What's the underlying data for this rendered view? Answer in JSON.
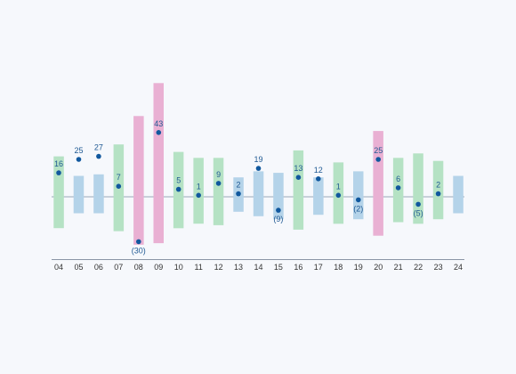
{
  "chart_data": {
    "type": "bar",
    "title": "",
    "xlabel": "",
    "ylabel": "",
    "categories": [
      "04",
      "05",
      "06",
      "07",
      "08",
      "09",
      "10",
      "11",
      "12",
      "13",
      "14",
      "15",
      "16",
      "17",
      "18",
      "19",
      "20",
      "21",
      "22",
      "23",
      "24"
    ],
    "values": [
      16,
      25,
      27,
      7,
      -30,
      43,
      5,
      1,
      9,
      2,
      19,
      -9,
      13,
      12,
      1,
      -2,
      25,
      6,
      -5,
      2,
      null
    ],
    "value_labels": [
      "16",
      "25",
      "27",
      "7",
      "(30)",
      "43",
      "5",
      "1",
      "9",
      "2",
      "19",
      "(9)",
      "13",
      "12",
      "1",
      "(2)",
      "25",
      "6",
      "(5)",
      "2",
      ""
    ],
    "range_high": [
      27,
      14,
      15,
      35,
      54,
      76,
      30,
      26,
      26,
      13,
      17,
      16,
      31,
      13,
      23,
      17,
      44,
      26,
      29,
      24,
      14
    ],
    "range_low": [
      -21,
      -11,
      -11,
      -23,
      -32,
      -31,
      -21,
      -18,
      -19,
      -10,
      -13,
      -15,
      -22,
      -12,
      -18,
      -15,
      -26,
      -17,
      -18,
      -15,
      -11
    ],
    "range_color_group": [
      "green",
      "blue",
      "blue",
      "green",
      "pink",
      "pink",
      "green",
      "green",
      "green",
      "blue",
      "blue",
      "blue",
      "green",
      "blue",
      "green",
      "blue",
      "pink",
      "green",
      "green",
      "green",
      "blue"
    ],
    "ylim": [
      -45,
      80
    ],
    "grid": false,
    "legend": "none",
    "colors": {
      "green": "#b5e2c4",
      "blue": "#b4d3e9",
      "pink": "#e9b0d3",
      "marker": "#11589e",
      "label": "#1f5993",
      "zero_line": "#9aa7b8",
      "axis_line": "#8a96a6",
      "tick_label": "#333333",
      "background": "#f6f8fc"
    }
  }
}
